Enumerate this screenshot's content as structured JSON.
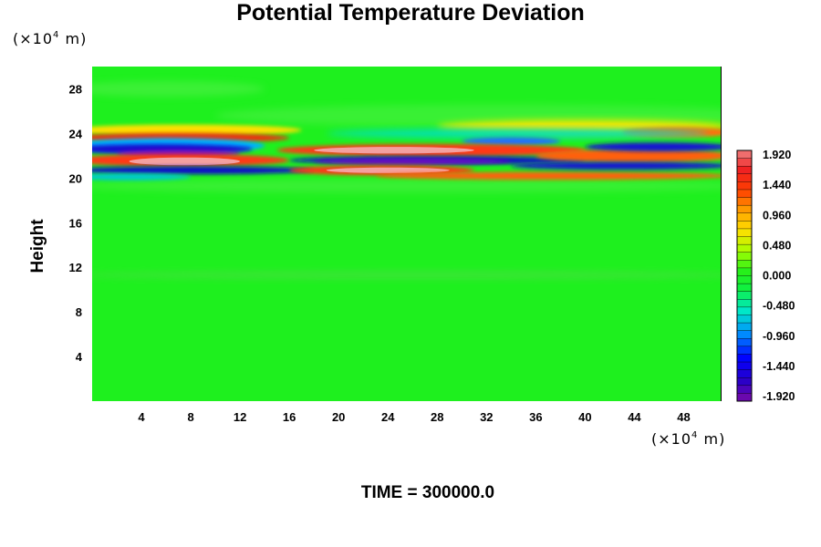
{
  "chart_data": {
    "type": "heatmap",
    "title": "Potential Temperature Deviation",
    "ylabel": "Height",
    "y_unit": {
      "prefix": "(×10",
      "exp": "4",
      "suffix": " m)"
    },
    "x_unit": {
      "prefix": "(×10",
      "exp": "4",
      "suffix": " m)"
    },
    "xlim": [
      0,
      51
    ],
    "ylim": [
      0,
      30
    ],
    "x_ticks": [
      4,
      8,
      12,
      16,
      20,
      24,
      28,
      32,
      36,
      40,
      44,
      48
    ],
    "y_ticks": [
      4,
      8,
      12,
      16,
      20,
      24,
      28
    ],
    "colorbar": {
      "min": -1.92,
      "max": 1.92,
      "labels": [
        "1.920",
        "1.440",
        "0.960",
        "0.480",
        "0.000",
        "-0.480",
        "-0.960",
        "-1.440",
        "-1.920"
      ]
    },
    "time_label": "TIME = 300000.0"
  }
}
